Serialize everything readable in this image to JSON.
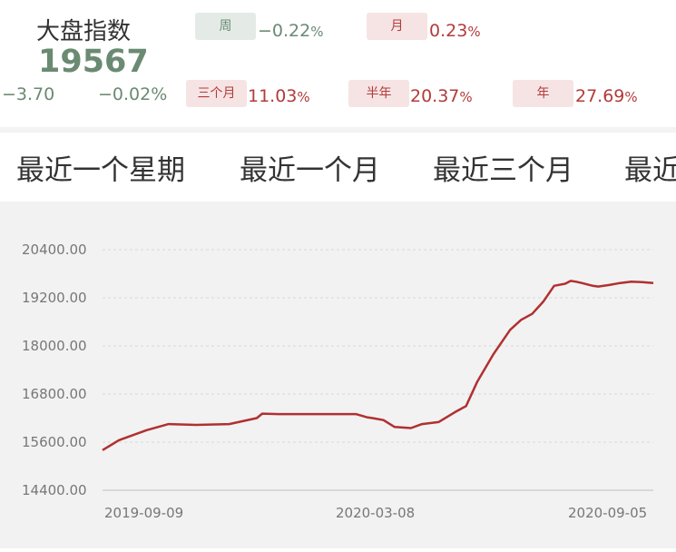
{
  "header": {
    "title": "大盘指数",
    "value": "19567",
    "change_abs": "−3.70",
    "change_pct": "−0.02%"
  },
  "periods": {
    "week": {
      "label": "周",
      "value": "−0.22",
      "unit": "%"
    },
    "month": {
      "label": "月",
      "value": "0.23",
      "unit": "%"
    },
    "quarter": {
      "label": "三个月",
      "value": "11.03",
      "unit": "%"
    },
    "half": {
      "label": "半年",
      "value": "20.37",
      "unit": "%"
    },
    "year": {
      "label": "年",
      "value": "27.69",
      "unit": "%"
    }
  },
  "tabs": [
    "最近一个星期",
    "最近一个月",
    "最近三个月",
    "最近"
  ],
  "colors": {
    "up": "#b33a3a",
    "down": "#6a8a72",
    "line": "#b03030"
  },
  "chart_data": {
    "type": "line",
    "ylim": [
      14400,
      20400
    ],
    "yticks": [
      "20400.00",
      "19200.00",
      "18000.00",
      "16800.00",
      "15600.00",
      "14400.00"
    ],
    "xticks": [
      "2019-09-09",
      "2020-03-08",
      "2020-09-05"
    ],
    "x": [
      0,
      0.03,
      0.08,
      0.12,
      0.17,
      0.23,
      0.28,
      0.29,
      0.32,
      0.37,
      0.42,
      0.46,
      0.48,
      0.49,
      0.51,
      0.53,
      0.56,
      0.58,
      0.61,
      0.64,
      0.66,
      0.68,
      0.71,
      0.74,
      0.76,
      0.78,
      0.8,
      0.82,
      0.84,
      0.85,
      0.86,
      0.87,
      0.89,
      0.9,
      0.92,
      0.94,
      0.96,
      0.98,
      1.0
    ],
    "y": [
      15400,
      15650,
      15900,
      16050,
      16030,
      16050,
      16200,
      16310,
      16300,
      16300,
      16300,
      16300,
      16220,
      16200,
      16150,
      15980,
      15950,
      16050,
      16100,
      16350,
      16500,
      17100,
      17800,
      18400,
      18650,
      18800,
      19100,
      19500,
      19550,
      19620,
      19600,
      19570,
      19500,
      19480,
      19520,
      19570,
      19600,
      19590,
      19567
    ]
  }
}
